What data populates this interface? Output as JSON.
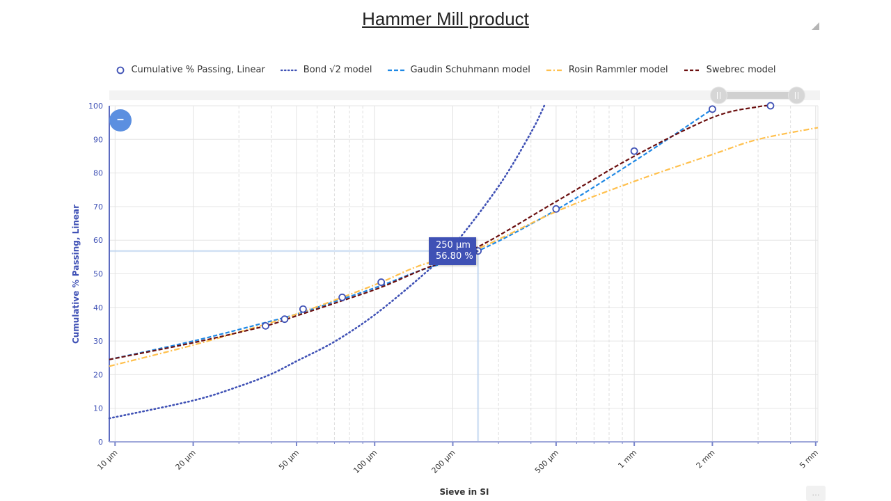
{
  "chart_data": {
    "type": "line",
    "title": "Hammer Mill product",
    "xlabel": "Sieve in SI",
    "ylabel": "Cumulative % Passing, Linear",
    "x_scale": "log",
    "xlim_um": [
      9.5,
      5100
    ],
    "ylim": [
      0,
      100
    ],
    "y_ticks": [
      0,
      10,
      20,
      30,
      40,
      50,
      60,
      70,
      80,
      90,
      100
    ],
    "x_ticks": [
      {
        "value": 10,
        "label": "10 µm"
      },
      {
        "value": 20,
        "label": "20 µm"
      },
      {
        "value": 50,
        "label": "50 µm"
      },
      {
        "value": 100,
        "label": "100 µm"
      },
      {
        "value": 200,
        "label": "200 µm"
      },
      {
        "value": 500,
        "label": "500 µm"
      },
      {
        "value": 1000,
        "label": "1 mm"
      },
      {
        "value": 2000,
        "label": "2 mm"
      },
      {
        "value": 5000,
        "label": "5 mm"
      }
    ],
    "grid": true,
    "legend_position": "top-center",
    "series": [
      {
        "name": "Cumulative % Passing, Linear",
        "kind": "markers",
        "color": "#3f51b5",
        "points": [
          [
            38,
            34.5
          ],
          [
            45,
            36.5
          ],
          [
            53,
            39.5
          ],
          [
            75,
            43
          ],
          [
            106,
            47.5
          ],
          [
            250,
            56.8
          ],
          [
            500,
            69.3
          ],
          [
            1000,
            86.5
          ],
          [
            2000,
            99
          ],
          [
            3350,
            100
          ]
        ]
      },
      {
        "name": "Bond √2 model",
        "kind": "dotted",
        "color": "#3f51b5",
        "points": [
          [
            9.5,
            7
          ],
          [
            20,
            12.3
          ],
          [
            30,
            16.5
          ],
          [
            40,
            20.2
          ],
          [
            50,
            24
          ],
          [
            70,
            29.8
          ],
          [
            100,
            37.8
          ],
          [
            150,
            49
          ],
          [
            200,
            58.2
          ],
          [
            300,
            76
          ],
          [
            400,
            92
          ],
          [
            450,
            100
          ]
        ]
      },
      {
        "name": "Gaudin Schuhmann model",
        "kind": "dashed",
        "color": "#1e88e5",
        "points": [
          [
            9.5,
            24.5
          ],
          [
            20,
            30
          ],
          [
            38,
            35.5
          ],
          [
            50,
            38
          ],
          [
            75,
            42.5
          ],
          [
            106,
            46.5
          ],
          [
            150,
            51
          ],
          [
            250,
            56.8
          ],
          [
            500,
            69
          ],
          [
            1000,
            83.5
          ],
          [
            2000,
            99
          ]
        ]
      },
      {
        "name": "Rosin Rammler model",
        "kind": "dashdot",
        "color": "#ffc04d",
        "points": [
          [
            9.5,
            22.5
          ],
          [
            20,
            28.8
          ],
          [
            38,
            35
          ],
          [
            50,
            38
          ],
          [
            75,
            43
          ],
          [
            106,
            47.5
          ],
          [
            150,
            52.5
          ],
          [
            250,
            57.5
          ],
          [
            500,
            68.5
          ],
          [
            1000,
            77.5
          ],
          [
            2000,
            85.5
          ],
          [
            3000,
            90
          ],
          [
            5100,
            93.5
          ]
        ]
      },
      {
        "name": "Swebrec model",
        "kind": "dashed",
        "color": "#6b0f0f",
        "points": [
          [
            9.5,
            24.5
          ],
          [
            20,
            29.5
          ],
          [
            38,
            34.5
          ],
          [
            50,
            37.5
          ],
          [
            75,
            42
          ],
          [
            106,
            46
          ],
          [
            150,
            51
          ],
          [
            250,
            58
          ],
          [
            500,
            71.5
          ],
          [
            1000,
            85
          ],
          [
            2000,
            96.5
          ],
          [
            3000,
            99.7
          ],
          [
            3400,
            100
          ]
        ]
      }
    ],
    "crosshair": {
      "x": 250,
      "y": 56.8
    },
    "tooltip": {
      "x_text": "250 µm",
      "y_text": "56.80 %"
    },
    "navigator_range": [
      0.86,
      0.97
    ]
  },
  "controls": {
    "zoom_out_symbol": "–",
    "corner_button_symbol": "…"
  }
}
